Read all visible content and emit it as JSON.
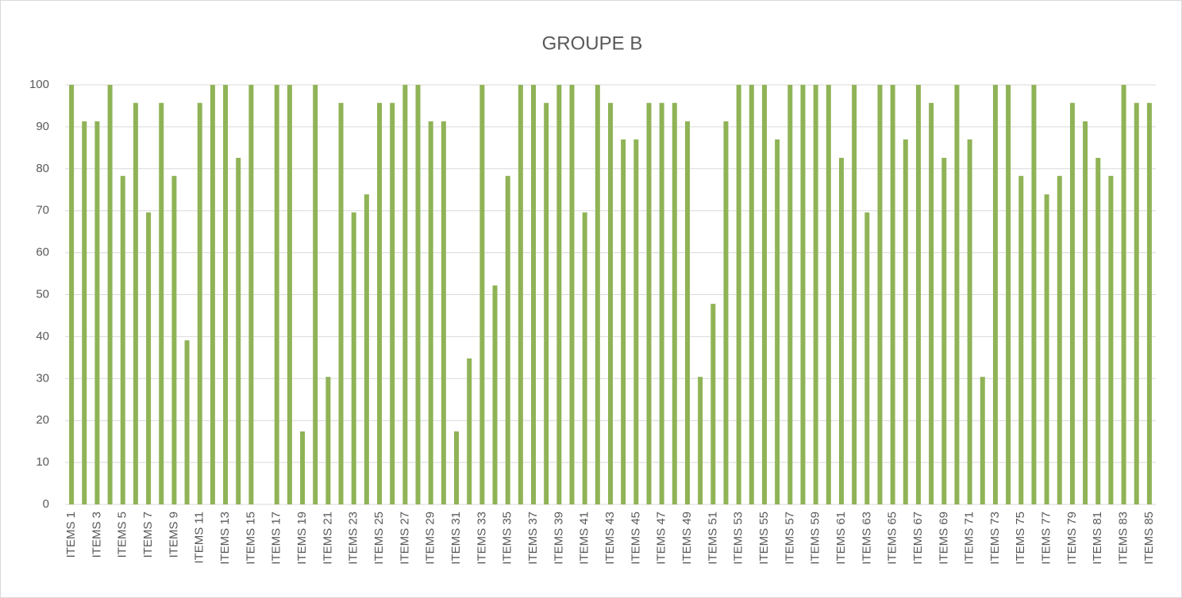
{
  "chart_data": {
    "type": "bar",
    "title": "GROUPE B",
    "categories": [
      "ITEMS 1",
      null,
      "ITEMS 3",
      null,
      "ITEMS 5",
      null,
      "ITEMS 7",
      null,
      "ITEMS 9",
      null,
      "ITEMS 11",
      null,
      "ITEMS 13",
      null,
      "ITEMS 15",
      null,
      "ITEMS 17",
      null,
      "ITEMS 19",
      null,
      "ITEMS 21",
      null,
      "ITEMS 23",
      null,
      "ITEMS 25",
      null,
      "ITEMS 27",
      null,
      "ITEMS 29",
      null,
      "ITEMS 31",
      null,
      "ITEMS 33",
      null,
      "ITEMS 35",
      null,
      "ITEMS 37",
      null,
      "ITEMS 39",
      null,
      "ITEMS 41",
      null,
      "ITEMS 43",
      null,
      "ITEMS 45",
      null,
      "ITEMS 47",
      null,
      "ITEMS 49",
      null,
      "ITEMS 51",
      null,
      "ITEMS 53",
      null,
      "ITEMS 55",
      null,
      "ITEMS 57",
      null,
      "ITEMS 59",
      null,
      "ITEMS 61",
      null,
      "ITEMS 63",
      null,
      "ITEMS 65",
      null,
      "ITEMS 67",
      null,
      "ITEMS 69",
      null,
      "ITEMS 71",
      null,
      "ITEMS 73",
      null,
      "ITEMS 75",
      null,
      "ITEMS 77",
      null,
      "ITEMS 79",
      null,
      "ITEMS 81",
      null,
      "ITEMS 83",
      null,
      "ITEMS 85"
    ],
    "values": [
      100,
      91.3,
      91.3,
      100,
      78.3,
      95.7,
      69.6,
      95.7,
      78.3,
      39.1,
      95.7,
      100,
      100,
      82.6,
      100,
      0,
      100,
      100,
      17.4,
      100,
      30.4,
      95.7,
      69.6,
      73.9,
      95.7,
      95.7,
      100,
      100,
      91.3,
      91.3,
      17.4,
      34.8,
      100,
      52.2,
      78.3,
      100,
      100,
      95.7,
      100,
      100,
      69.6,
      100,
      95.7,
      87,
      87,
      95.7,
      95.7,
      95.7,
      91.3,
      30.4,
      47.8,
      91.3,
      100,
      100,
      100,
      87,
      100,
      100,
      100,
      100,
      82.6,
      100,
      69.6,
      100,
      100,
      87,
      100,
      95.7,
      82.6,
      100,
      87,
      30.4,
      100,
      100,
      78.3,
      100,
      73.9,
      78.3,
      95.7,
      91.3,
      82.6,
      78.3,
      100,
      95.7,
      95.7
    ],
    "color": "#8fb356",
    "ylim": [
      0,
      100
    ],
    "yticks": [
      0,
      10,
      20,
      30,
      40,
      50,
      60,
      70,
      80,
      90,
      100
    ],
    "grid": true
  }
}
